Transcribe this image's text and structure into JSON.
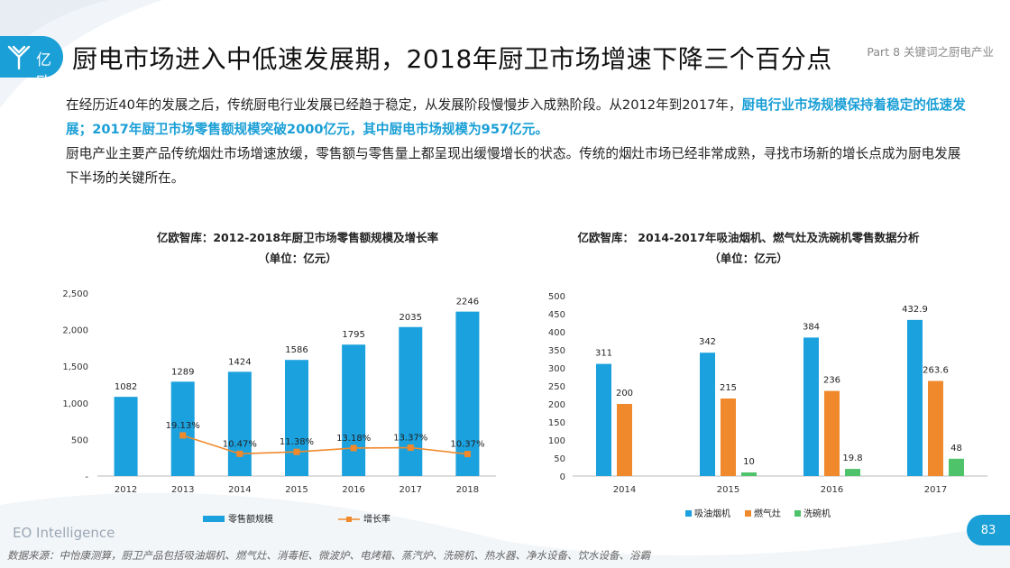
{
  "header": {
    "logo_text": "亿欧",
    "title": "厨电市场进入中低速发展期，2018年厨卫市场增速下降三个百分点",
    "part_label": "Part 8 关键词之厨电产业"
  },
  "body": {
    "p1_normal": "在经历近40年的发展之后，传统厨电行业发展已经趋于稳定，从发展阶段慢慢步入成熟阶段。从2012年到2017年，",
    "p1_highlight": "厨电行业市场规模保持着稳定的低速发展；2017年厨卫市场零售额规模突破2000亿元，其中厨电市场规模为957亿元。",
    "p2": "厨电产业主要产品传统烟灶市场增速放缓，零售额与零售量上都呈现出缓慢增长的状态。传统的烟灶市场已经非常成熟，寻找市场新的增长点成为厨电发展下半场的关键所在。"
  },
  "colors": {
    "accent": "#1a9fd6",
    "bar_blue": "#1ba1de",
    "line_orange": "#f0892b",
    "bar_green": "#4fc36a"
  },
  "footer": {
    "source": "数据来源：中怡康测算，厨卫产品包括吸油烟机、燃气灶、消毒柜、微波炉、电烤箱、蒸汽炉、洗碗机、热水器、净水设备、饮水设备、浴霸",
    "brand": "EO Intelligence",
    "page_number": "83"
  },
  "chart_data": [
    {
      "type": "bar",
      "title": "亿欧智库：2012-2018年厨卫市场零售额规模及增长率",
      "subtitle": "（单位：亿元）",
      "categories": [
        "2012",
        "2013",
        "2014",
        "2015",
        "2016",
        "2017",
        "2018"
      ],
      "series": [
        {
          "name": "零售额规模",
          "type": "bar",
          "values": [
            1082,
            1289,
            1424,
            1586,
            1795,
            2035,
            2246
          ],
          "labels": [
            "1082",
            "1289",
            "1424",
            "1586",
            "1795",
            "2035",
            "2246"
          ]
        },
        {
          "name": "增长率",
          "type": "line",
          "values": [
            null,
            19.13,
            10.47,
            11.38,
            13.18,
            13.37,
            10.37
          ],
          "labels": [
            "",
            "19.13%",
            "10.47%",
            "11.38%",
            "13.18%",
            "13.37%",
            "10.37%"
          ]
        }
      ],
      "ylim": [
        0,
        2500
      ],
      "yticks": [
        "-",
        "500",
        "1,000",
        "1,500",
        "2,000",
        "2,500"
      ],
      "legend_position": "bottom"
    },
    {
      "type": "bar",
      "title": "亿欧智库： 2014-2017年吸油烟机、燃气灶及洗碗机零售数据分析",
      "subtitle": "（单位：亿元）",
      "categories": [
        "2014",
        "2015",
        "2016",
        "2017"
      ],
      "series": [
        {
          "name": "吸油烟机",
          "values": [
            311,
            342,
            384,
            432.9
          ],
          "labels": [
            "311",
            "342",
            "384",
            "432.9"
          ]
        },
        {
          "name": "燃气灶",
          "values": [
            200,
            215,
            236,
            263.6
          ],
          "labels": [
            "200",
            "215",
            "236",
            "263.6"
          ]
        },
        {
          "name": "洗碗机",
          "values": [
            null,
            10,
            19.8,
            48
          ],
          "labels": [
            "",
            "10",
            "19.8",
            "48"
          ]
        }
      ],
      "ylim": [
        0,
        500
      ],
      "yticks": [
        "0",
        "50",
        "100",
        "150",
        "200",
        "250",
        "300",
        "350",
        "400",
        "450",
        "500"
      ],
      "legend_position": "bottom"
    }
  ]
}
